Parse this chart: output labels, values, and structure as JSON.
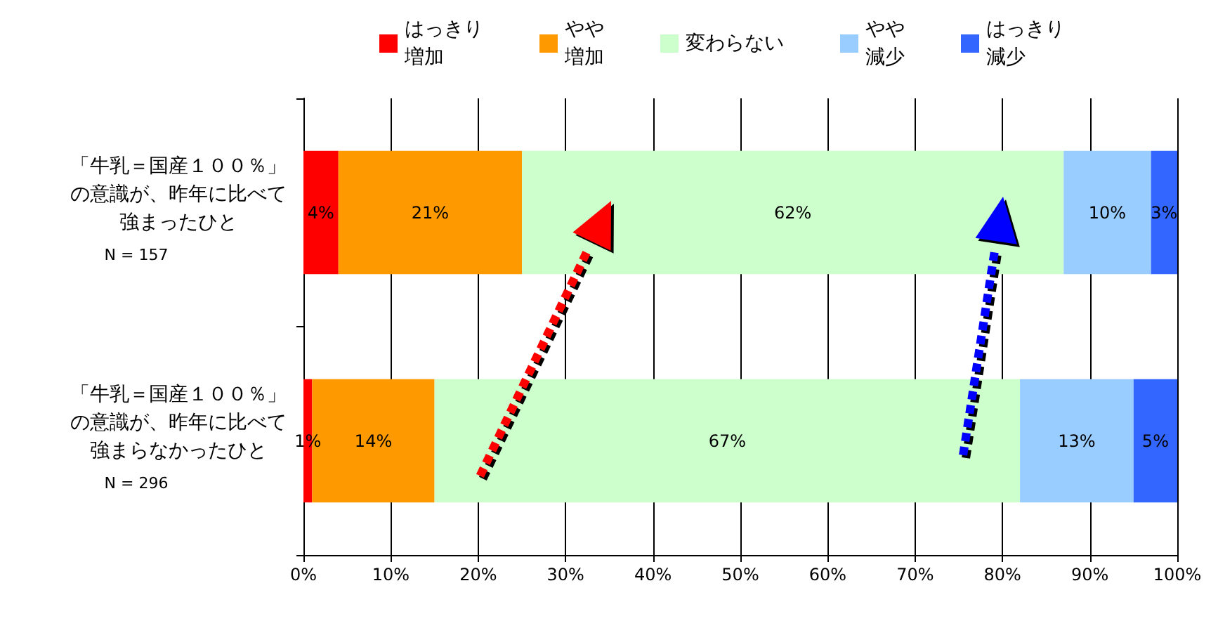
{
  "chart_data": {
    "type": "bar",
    "orientation": "horizontal",
    "stacked": true,
    "categories": [
      "「牛乳＝国産１００％」の意識が、昨年に比べて強まったひと\nN = 157",
      "「牛乳＝国産１００％」の意識が、昨年に比べて強まらなかったひと\nN = 296"
    ],
    "series": [
      {
        "name": "はっきり増加",
        "color": "#ff0000",
        "values": [
          4,
          1
        ],
        "value_labels": [
          "4%",
          "1%"
        ]
      },
      {
        "name": "やや増加",
        "color": "#ff9900",
        "values": [
          21,
          14
        ],
        "value_labels": [
          "21%",
          "14%"
        ]
      },
      {
        "name": "変わらない",
        "color": "#ccffcc",
        "values": [
          62,
          67
        ],
        "value_labels": [
          "62%",
          "67%"
        ]
      },
      {
        "name": "やや減少",
        "color": "#99ccff",
        "values": [
          10,
          13
        ],
        "value_labels": [
          "10%",
          "13%"
        ]
      },
      {
        "name": "はっきり減少",
        "color": "#3366ff",
        "values": [
          3,
          5
        ],
        "value_labels": [
          "3%",
          "5%"
        ]
      }
    ],
    "xlim": [
      0,
      100
    ],
    "xticks": [
      {
        "value": 0,
        "label": "0%"
      },
      {
        "value": 10,
        "label": "10%"
      },
      {
        "value": 20,
        "label": "20%"
      },
      {
        "value": 30,
        "label": "30%"
      },
      {
        "value": 40,
        "label": "40%"
      },
      {
        "value": 50,
        "label": "50%"
      },
      {
        "value": 60,
        "label": "60%"
      },
      {
        "value": 70,
        "label": "70%"
      },
      {
        "value": 80,
        "label": "80%"
      },
      {
        "value": 90,
        "label": "90%"
      },
      {
        "value": 100,
        "label": "100%"
      }
    ],
    "grid": "x",
    "legend": "top"
  }
}
